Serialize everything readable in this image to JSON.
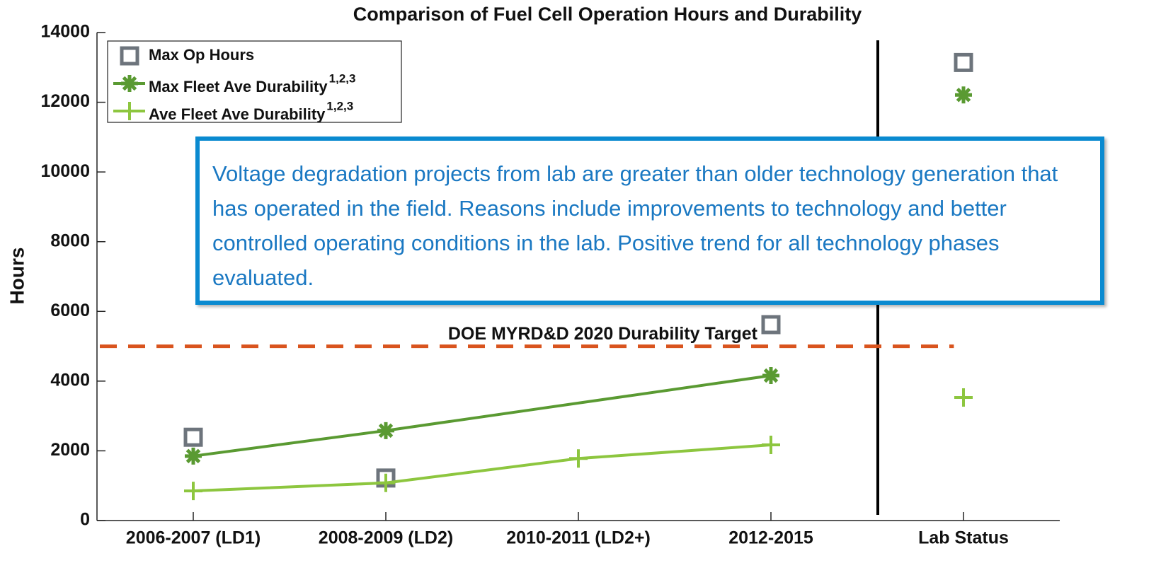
{
  "chart_data": {
    "type": "line",
    "title": "Comparison of Fuel Cell Operation Hours and Durability",
    "y_label": "Hours",
    "categories": [
      "2006-2007 (LD1)",
      "2008-2009 (LD2)",
      "2010-2011 (LD2+)",
      "2012-2015",
      "Lab Status"
    ],
    "series": [
      {
        "name": "Max Op Hours",
        "color": "#6d747c",
        "marker": "square",
        "line": false,
        "values": [
          2390,
          1220,
          null,
          5620,
          13140
        ]
      },
      {
        "name": "Max Fleet Ave Durability",
        "superscript": "1,2,3",
        "color": "#5a9a32",
        "marker": "asterisk",
        "line": true,
        "values": [
          1850,
          2580,
          null,
          4160,
          12210
        ]
      },
      {
        "name": "Ave Fleet Ave Durability",
        "superscript": "1,2,3",
        "color": "#8dc63f",
        "marker": "plus",
        "line": true,
        "values": [
          850,
          1080,
          1780,
          2170,
          3530
        ]
      }
    ],
    "connect_gaps": true,
    "divider_after_category": 3,
    "ylim": [
      0,
      14000
    ],
    "yticks": [
      0,
      2000,
      4000,
      6000,
      8000,
      10000,
      12000,
      14000
    ],
    "target": {
      "value": 5000,
      "label": "DOE MYRD&D 2020 Durability Target",
      "color": "#d9541e"
    },
    "annotation": "Voltage degradation projects from lab are greater than older technology generation that has operated in the field. Reasons include improvements to technology and better controlled operating conditions in the lab. Positive trend for all technology phases evaluated.",
    "legend": "upper left"
  }
}
